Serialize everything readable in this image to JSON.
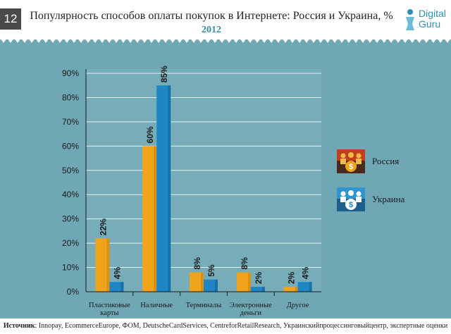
{
  "slide_number": "12",
  "title": "Популярность способов оплаты покупок в Интернете: Россия и Украина, %",
  "year": "2012",
  "logo": {
    "line1": "Digital",
    "line2": "Guru"
  },
  "footer": {
    "label": "Источник",
    "text": ": Innopay, EcommerceEurope, ФОМ, DeutscheCardServices, CentreforRetailResearch, Украинскийпроцессинговыйцентр, экспертные оценки"
  },
  "colors": {
    "background": "#6fa8b4",
    "russia_bar": "#f0a41c",
    "ukraine_bar": "#1e86c4",
    "year": "#3b8ba6"
  },
  "legend": [
    {
      "name": "Россия",
      "icon": "people-money-icon-orange"
    },
    {
      "name": "Украина",
      "icon": "people-money-icon-blue"
    }
  ],
  "chart_data": {
    "type": "bar",
    "categories": [
      [
        "Пластиковые",
        "карты"
      ],
      [
        "Наличные"
      ],
      [
        "Терминалы"
      ],
      [
        "Электронные",
        "деньги"
      ],
      [
        "Другое"
      ]
    ],
    "series": [
      {
        "name": "Россия",
        "values": [
          22,
          60,
          8,
          8,
          2
        ],
        "labels": [
          "22%",
          "60%",
          "8%",
          "8%",
          "2%"
        ]
      },
      {
        "name": "Украина",
        "values": [
          4,
          85,
          5,
          2,
          4
        ],
        "labels": [
          "4%",
          "85%",
          "5%",
          "2%",
          "4%"
        ]
      }
    ],
    "yticks": [
      "0%",
      "10%",
      "20%",
      "30%",
      "40%",
      "50%",
      "60%",
      "70%",
      "80%",
      "90%"
    ],
    "ylim": [
      0,
      90
    ],
    "grid": true,
    "legend_position": "right"
  }
}
